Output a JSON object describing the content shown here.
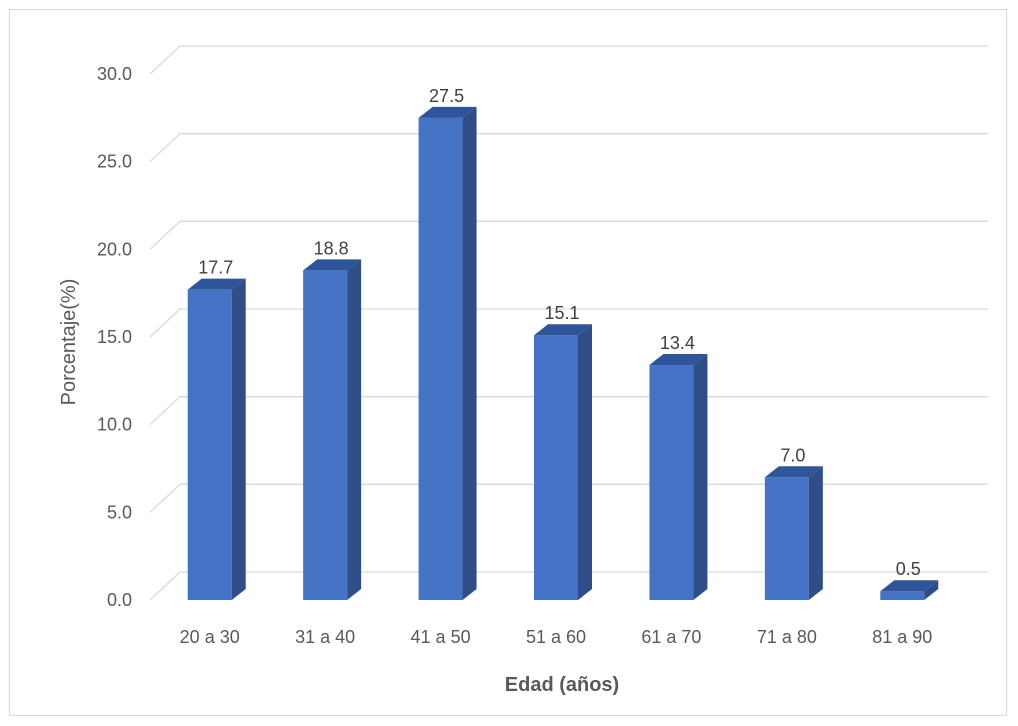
{
  "chart_data": {
    "type": "bar",
    "categories": [
      "20 a 30",
      "31 a 40",
      "41 a 50",
      "51 a 60",
      "61 a 70",
      "71 a 80",
      "81 a 90"
    ],
    "values": [
      17.7,
      18.8,
      27.5,
      15.1,
      13.4,
      7.0,
      0.5
    ],
    "value_labels": [
      "17.7",
      "18.8",
      "27.5",
      "15.1",
      "13.4",
      "7.0",
      "0.5"
    ],
    "xlabel": "Edad (años)",
    "ylabel": "Porcentaje(%)",
    "ylim": [
      0,
      30
    ],
    "yticks": [
      "0.0",
      "5.0",
      "10.0",
      "15.0",
      "20.0",
      "25.0",
      "30.0"
    ],
    "grid": true,
    "legend": "none",
    "style": "3d-column",
    "colors": {
      "bar_front": "#4472C4",
      "bar_side": "#2F4E88",
      "bar_top": "#2E549A",
      "gridline": "#d9d9d9"
    }
  }
}
